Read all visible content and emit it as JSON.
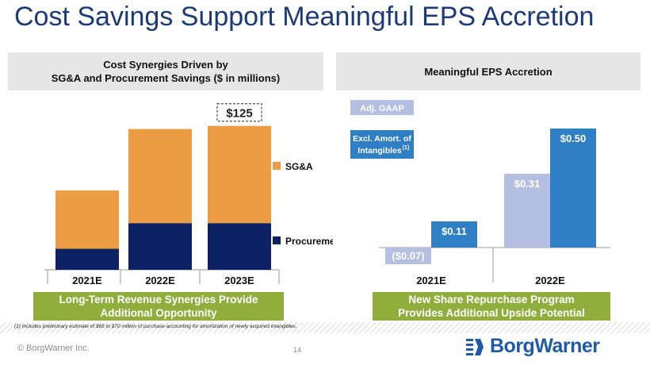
{
  "slide": {
    "title": "Cost Savings Support Meaningful EPS Accretion",
    "copyright": "© BorgWarner Inc.",
    "page_number": "14",
    "logo_text": "BorgWarner",
    "footnote": "(1)     Includes preliminary estimate of $65 to $70 million of purchase accounting for amortization of newly acquired intangibles."
  },
  "left_panel": {
    "header_line1": "Cost Synergies Driven by",
    "header_line2": "SG&A and Procurement Savings ($ in millions)",
    "green_line1": "Long-Term Revenue Synergies Provide",
    "green_line2": "Additional Opportunity"
  },
  "right_panel": {
    "header": "Meaningful EPS Accretion",
    "green_line1": "New Share Repurchase Program",
    "green_line2": "Provides Additional Upside Potential"
  },
  "colors": {
    "title": "#1d3a78",
    "sga": "#ec9c43",
    "procurement": "#0d2263",
    "adj_gaap": "#b4bfe2",
    "excl_amort": "#2e7fc4",
    "green": "#8fae3c"
  },
  "chart_data": [
    {
      "type": "bar",
      "stacked": true,
      "title": "Cost Synergies Driven by SG&A and Procurement Savings ($ in millions)",
      "categories": [
        "2021E",
        "2022E",
        "2023E"
      ],
      "series": [
        {
          "name": "Procurement",
          "values": [
            27,
            60,
            60
          ]
        },
        {
          "name": "SG&A",
          "values": [
            75,
            121,
            125
          ]
        }
      ],
      "totals": [
        102,
        181,
        185
      ],
      "annotations": [
        {
          "category": "2023E",
          "text": "$125"
        }
      ],
      "legend": [
        "SG&A",
        "Procurement"
      ],
      "legend_position": "right",
      "ylim": [
        0,
        200
      ]
    },
    {
      "type": "bar",
      "title": "Meaningful EPS Accretion",
      "categories": [
        "2021E",
        "2022E"
      ],
      "series": [
        {
          "name": "Adj. GAAP",
          "values": [
            -0.07,
            0.31
          ],
          "labels": [
            "($0.07)",
            "$0.31"
          ]
        },
        {
          "name": "Excl. Amort. of Intangibles",
          "footnote_ref": "(1)",
          "values": [
            0.11,
            0.5
          ],
          "labels": [
            "$0.11",
            "$0.50"
          ]
        }
      ],
      "legend_position": "top-left",
      "ylim": [
        -0.1,
        0.55
      ]
    }
  ]
}
